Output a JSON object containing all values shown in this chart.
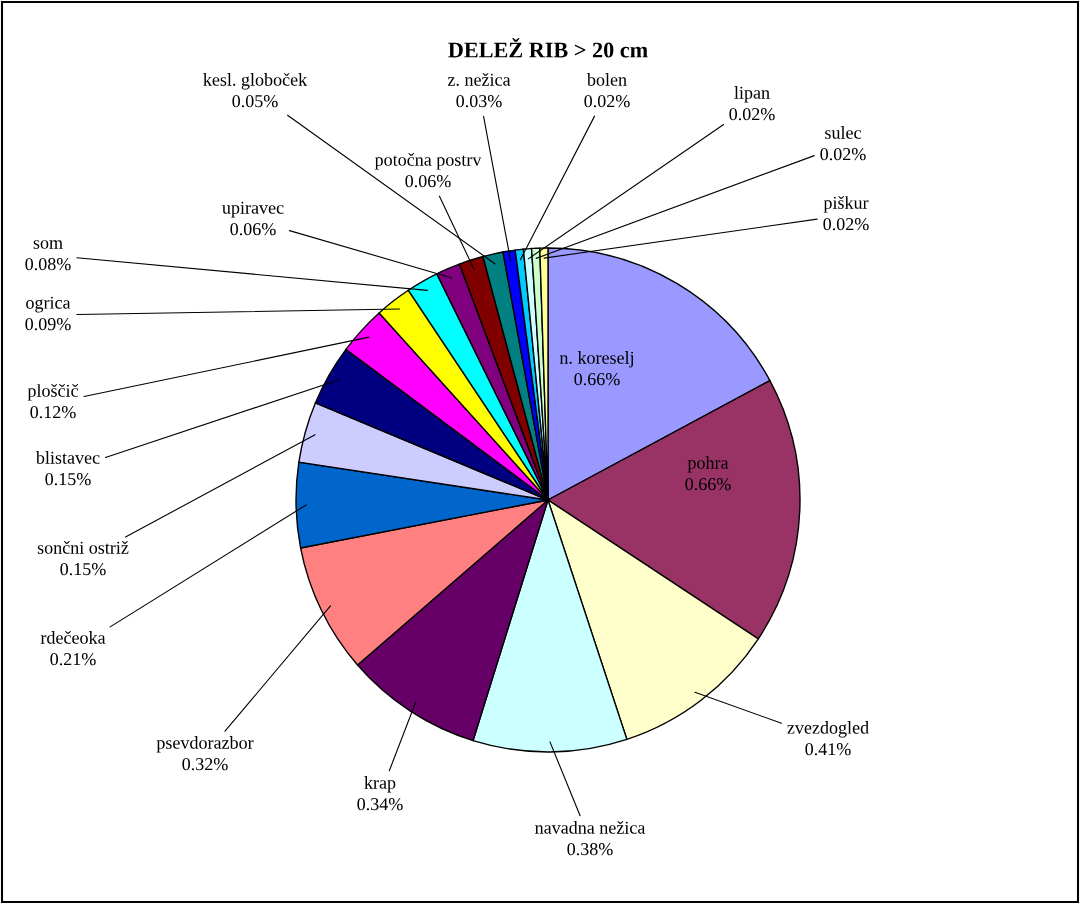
{
  "chart_data": {
    "type": "pie",
    "title": "DELEŽ RIB > 20 cm",
    "categories": [
      "n. koreselj",
      "pohra",
      "zvezdogled",
      "navadna nežica",
      "krap",
      "psevdorazbor",
      "rdečeoka",
      "sončni ostriž",
      "blistavec",
      "ploščič",
      "ogrica",
      "som",
      "upiravec",
      "potočna postrv",
      "kesl. globoček",
      "z. nežica",
      "bolen",
      "lipan",
      "sulec",
      "piškur"
    ],
    "values": [
      0.66,
      0.66,
      0.41,
      0.38,
      0.34,
      0.32,
      0.21,
      0.15,
      0.15,
      0.12,
      0.09,
      0.08,
      0.06,
      0.06,
      0.05,
      0.03,
      0.02,
      0.02,
      0.02,
      0.02
    ],
    "value_labels": [
      "0.66%",
      "0.66%",
      "0.41%",
      "0.38%",
      "0.34%",
      "0.32%",
      "0.21%",
      "0.15%",
      "0.15%",
      "0.12%",
      "0.09%",
      "0.08%",
      "0.06%",
      "0.06%",
      "0.05%",
      "0.03%",
      "0.02%",
      "0.02%",
      "0.02%",
      "0.02%"
    ],
    "colors": [
      "#9999ff",
      "#993366",
      "#ffffcc",
      "#ccffff",
      "#660066",
      "#ff8080",
      "#0066cc",
      "#ccccff",
      "#000080",
      "#ff00ff",
      "#ffff00",
      "#00ffff",
      "#800080",
      "#800000",
      "#008080",
      "#0000ff",
      "#00ccff",
      "#ccffff",
      "#ccffcc",
      "#ffff99"
    ]
  }
}
